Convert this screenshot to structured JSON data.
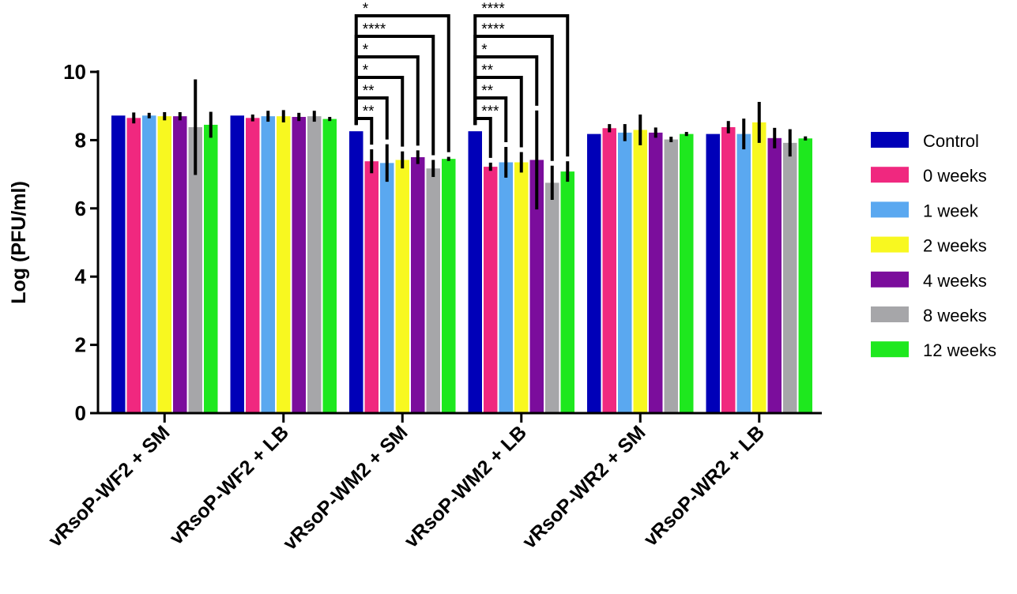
{
  "chart_data": {
    "type": "bar",
    "title": "",
    "xlabel": "",
    "ylabel": "Log (PFU/ml)",
    "ylim": [
      0,
      10
    ],
    "yticks": [
      "0",
      "2",
      "4",
      "6",
      "8",
      "10"
    ],
    "grid": false,
    "legend_position": "right",
    "categories": [
      "vRsoP-WF2 + SM",
      "vRsoP-WF2 + LB",
      "vRsoP-WM2 + SM",
      "vRsoP-WM2 + LB",
      "vRsoP-WR2 + SM",
      "vRsoP-WR2 + LB"
    ],
    "series": [
      {
        "name": "Control",
        "color": "#0000b8",
        "values": [
          8.72,
          8.72,
          8.26,
          8.26,
          8.18,
          8.18
        ],
        "errors": [
          0.0,
          0.0,
          0.0,
          0.0,
          0.0,
          0.0
        ]
      },
      {
        "name": "0 weeks",
        "color": "#f0287f",
        "values": [
          8.65,
          8.65,
          7.38,
          7.22,
          8.35,
          8.38
        ],
        "errors": [
          0.16,
          0.1,
          0.35,
          0.12,
          0.12,
          0.18
        ]
      },
      {
        "name": "1 week",
        "color": "#5aa8f0",
        "values": [
          8.72,
          8.7,
          7.33,
          7.35,
          8.22,
          8.18
        ],
        "errors": [
          0.08,
          0.16,
          0.55,
          0.45,
          0.25,
          0.45
        ]
      },
      {
        "name": "2 weeks",
        "color": "#f8f820",
        "values": [
          8.7,
          8.7,
          7.42,
          7.35,
          8.3,
          8.52
        ],
        "errors": [
          0.12,
          0.18,
          0.25,
          0.3,
          0.45,
          0.6
        ]
      },
      {
        "name": "4 weeks",
        "color": "#7b0d9c",
        "values": [
          8.7,
          8.68,
          7.5,
          7.42,
          8.22,
          8.06
        ],
        "errors": [
          0.12,
          0.12,
          0.2,
          1.45,
          0.15,
          0.3
        ]
      },
      {
        "name": "8 weeks",
        "color": "#a6a6a9",
        "values": [
          8.38,
          8.7,
          7.17,
          6.75,
          8.02,
          7.92
        ],
        "errors": [
          1.4,
          0.16,
          0.25,
          0.5,
          0.08,
          0.4
        ]
      },
      {
        "name": "12 weeks",
        "color": "#1ee81e",
        "values": [
          8.45,
          8.62,
          7.45,
          7.08,
          8.18,
          8.05
        ],
        "errors": [
          0.38,
          0.06,
          0.06,
          0.3,
          0.06,
          0.06
        ]
      }
    ],
    "significance": [
      {
        "category": 2,
        "from": 0,
        "to": 1,
        "label": "**"
      },
      {
        "category": 2,
        "from": 0,
        "to": 2,
        "label": "**"
      },
      {
        "category": 2,
        "from": 0,
        "to": 3,
        "label": "*"
      },
      {
        "category": 2,
        "from": 0,
        "to": 4,
        "label": "*"
      },
      {
        "category": 2,
        "from": 0,
        "to": 5,
        "label": "****"
      },
      {
        "category": 2,
        "from": 0,
        "to": 6,
        "label": "*"
      },
      {
        "category": 3,
        "from": 0,
        "to": 1,
        "label": "***"
      },
      {
        "category": 3,
        "from": 0,
        "to": 2,
        "label": "**"
      },
      {
        "category": 3,
        "from": 0,
        "to": 3,
        "label": "**"
      },
      {
        "category": 3,
        "from": 0,
        "to": 4,
        "label": "*"
      },
      {
        "category": 3,
        "from": 0,
        "to": 5,
        "label": "****"
      },
      {
        "category": 3,
        "from": 0,
        "to": 6,
        "label": "****"
      }
    ]
  }
}
